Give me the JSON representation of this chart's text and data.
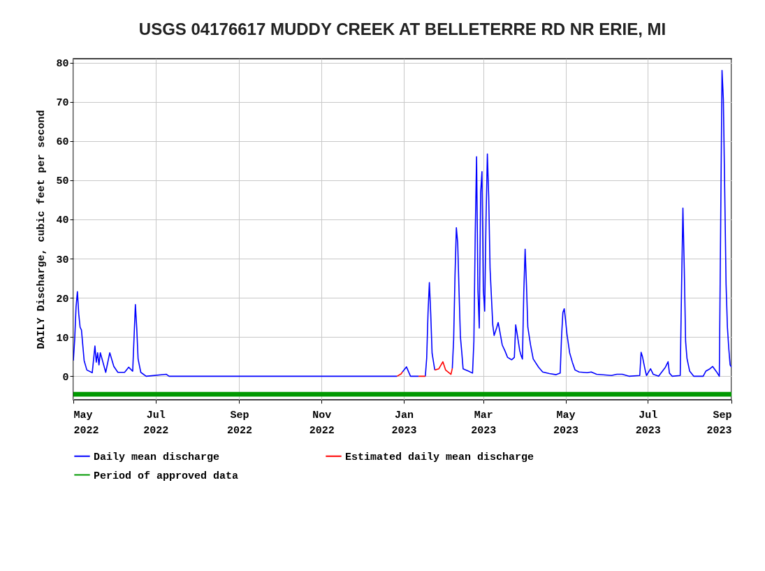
{
  "chart_data": {
    "type": "line",
    "title": "USGS 04176617 MUDDY CREEK AT BELLETERRE RD NR ERIE, MI",
    "ylabel": "DAILY Discharge, cubic feet per second",
    "xlim": [
      "2022-05-01",
      "2023-09-01"
    ],
    "xticks": [
      {
        "value": "2022-05-01",
        "label": "May 2022"
      },
      {
        "value": "2022-07-01",
        "label": "Jul 2022"
      },
      {
        "value": "2022-09-01",
        "label": "Sep 2022"
      },
      {
        "value": "2022-11-01",
        "label": "Nov 2022"
      },
      {
        "value": "2023-01-01",
        "label": "Jan 2023"
      },
      {
        "value": "2023-03-01",
        "label": "Mar 2023"
      },
      {
        "value": "2023-05-01",
        "label": "May 2023"
      },
      {
        "value": "2023-07-01",
        "label": "Jul 2023"
      },
      {
        "value": "2023-09-01",
        "label": "Sep 2023"
      }
    ],
    "ylim": [
      -6,
      81
    ],
    "yticks": [
      0,
      10,
      20,
      30,
      40,
      50,
      60,
      70,
      80
    ],
    "grid": true,
    "legend": "bottom",
    "series": [
      {
        "name": "Daily mean discharge",
        "color": "#0000ff",
        "x": [
          "2022-05-01",
          "2022-05-02",
          "2022-05-03",
          "2022-05-04",
          "2022-05-05",
          "2022-05-06",
          "2022-05-07",
          "2022-05-09",
          "2022-05-11",
          "2022-05-15",
          "2022-05-17",
          "2022-05-18",
          "2022-05-19",
          "2022-05-20",
          "2022-05-21",
          "2022-05-25",
          "2022-05-28",
          "2022-05-31",
          "2022-06-03",
          "2022-06-08",
          "2022-06-11",
          "2022-06-14",
          "2022-06-16",
          "2022-06-17",
          "2022-06-18",
          "2022-06-20",
          "2022-06-24",
          "2022-07-09",
          "2022-07-11",
          "2022-12-27",
          "2022-12-29",
          "2022-12-31",
          "2023-01-03",
          "2023-01-06",
          "2023-01-12",
          "2023-01-14",
          "2023-01-17",
          "2023-01-18",
          "2023-01-19",
          "2023-01-20",
          "2023-01-21",
          "2023-01-22",
          "2023-01-24",
          "2023-01-26",
          "2023-02-06",
          "2023-02-07",
          "2023-02-08",
          "2023-02-09",
          "2023-02-10",
          "2023-02-11",
          "2023-02-12",
          "2023-02-13",
          "2023-02-14",
          "2023-02-18",
          "2023-02-21",
          "2023-02-22",
          "2023-02-23",
          "2023-02-24",
          "2023-02-25",
          "2023-02-26",
          "2023-02-27",
          "2023-02-28",
          "2023-03-01",
          "2023-03-02",
          "2023-03-03",
          "2023-03-04",
          "2023-03-05",
          "2023-03-06",
          "2023-03-07",
          "2023-03-08",
          "2023-03-09",
          "2023-03-11",
          "2023-03-12",
          "2023-03-13",
          "2023-03-15",
          "2023-03-17",
          "2023-03-19",
          "2023-03-22",
          "2023-03-24",
          "2023-03-25",
          "2023-03-26",
          "2023-03-28",
          "2023-03-29",
          "2023-03-30",
          "2023-03-31",
          "2023-04-01",
          "2023-04-02",
          "2023-04-03",
          "2023-04-05",
          "2023-04-07",
          "2023-04-11",
          "2023-04-14",
          "2023-04-19",
          "2023-04-24",
          "2023-04-27",
          "2023-04-28",
          "2023-04-29",
          "2023-04-30",
          "2023-05-01",
          "2023-05-02",
          "2023-05-04",
          "2023-05-06",
          "2023-05-08",
          "2023-05-11",
          "2023-05-17",
          "2023-05-20",
          "2023-05-24",
          "2023-06-04",
          "2023-06-08",
          "2023-06-12",
          "2023-06-17",
          "2023-06-25",
          "2023-06-26",
          "2023-06-27",
          "2023-06-29",
          "2023-06-30",
          "2023-07-03",
          "2023-07-05",
          "2023-07-09",
          "2023-07-14",
          "2023-07-16",
          "2023-07-17",
          "2023-07-19",
          "2023-07-25",
          "2023-07-26",
          "2023-07-27",
          "2023-07-28",
          "2023-07-29",
          "2023-07-30",
          "2023-08-01",
          "2023-08-04",
          "2023-08-11",
          "2023-08-13",
          "2023-08-16",
          "2023-08-18",
          "2023-08-21",
          "2023-08-23",
          "2023-08-24",
          "2023-08-25",
          "2023-08-26",
          "2023-08-27",
          "2023-08-28",
          "2023-08-29",
          "2023-08-30",
          "2023-08-31",
          "2023-09-01"
        ],
        "values": [
          4,
          9.4,
          17.7,
          21.6,
          15.9,
          12.5,
          11.8,
          4,
          1.6,
          0.9,
          7.7,
          3.6,
          6,
          2.9,
          6,
          1,
          6,
          2.5,
          1,
          1,
          2.3,
          1.3,
          18.3,
          12.3,
          4.4,
          1,
          0,
          0.5,
          0,
          0,
          null,
          1.1,
          2.4,
          0,
          0,
          null,
          0,
          4.6,
          16.2,
          23.9,
          15.9,
          5.9,
          1.6,
          null,
          2,
          9.4,
          25.7,
          37.9,
          34,
          21.6,
          10.1,
          6.2,
          1.9,
          1.3,
          0.8,
          8.9,
          36.4,
          56,
          22,
          12.3,
          46.8,
          52.2,
          22,
          16.6,
          40,
          56.7,
          45.7,
          27.4,
          20.3,
          13.1,
          10.4,
          12.5,
          13.7,
          11.9,
          8,
          6.5,
          4.8,
          4.2,
          4.8,
          13.1,
          11,
          6.5,
          5.3,
          4.4,
          21.4,
          32.4,
          23.2,
          12.5,
          8,
          4.4,
          2.3,
          1.1,
          0.7,
          0.4,
          0.8,
          10.1,
          16.3,
          17.2,
          14.3,
          10.8,
          6,
          3.6,
          1.6,
          1.1,
          0.9,
          1.1,
          0.5,
          0.2,
          0.5,
          0.5,
          0,
          0.2,
          6.1,
          5,
          1.6,
          0.2,
          1.9,
          0.5,
          0,
          2.3,
          3.7,
          0.8,
          0,
          0.2,
          22.8,
          42.9,
          27.5,
          8.9,
          4.6,
          1.3,
          0,
          0,
          1.3,
          1.9,
          2.5,
          1.1,
          0,
          39,
          78,
          70.6,
          47.4,
          23.5,
          12.5,
          7.1,
          2.9,
          2.3
        ]
      },
      {
        "name": "Estimated daily mean discharge",
        "color": "#ff0000",
        "x": [
          "2022-12-27",
          "2022-12-30",
          "2022-12-31",
          "2023-01-01",
          "2023-01-12",
          "2023-01-17",
          "2023-01-18",
          "2023-01-24",
          "2023-01-27",
          "2023-01-30",
          "2023-02-01",
          "2023-02-05",
          "2023-02-06"
        ],
        "values": [
          0,
          0.6,
          1.1,
          null,
          0,
          0,
          null,
          1.6,
          1.9,
          3.7,
          1.6,
          0.5,
          2
        ]
      }
    ],
    "bands": [
      {
        "axis": "y",
        "from": -5.2,
        "to": -4.0,
        "label": "Period of approved data",
        "color": "#009900"
      }
    ]
  }
}
